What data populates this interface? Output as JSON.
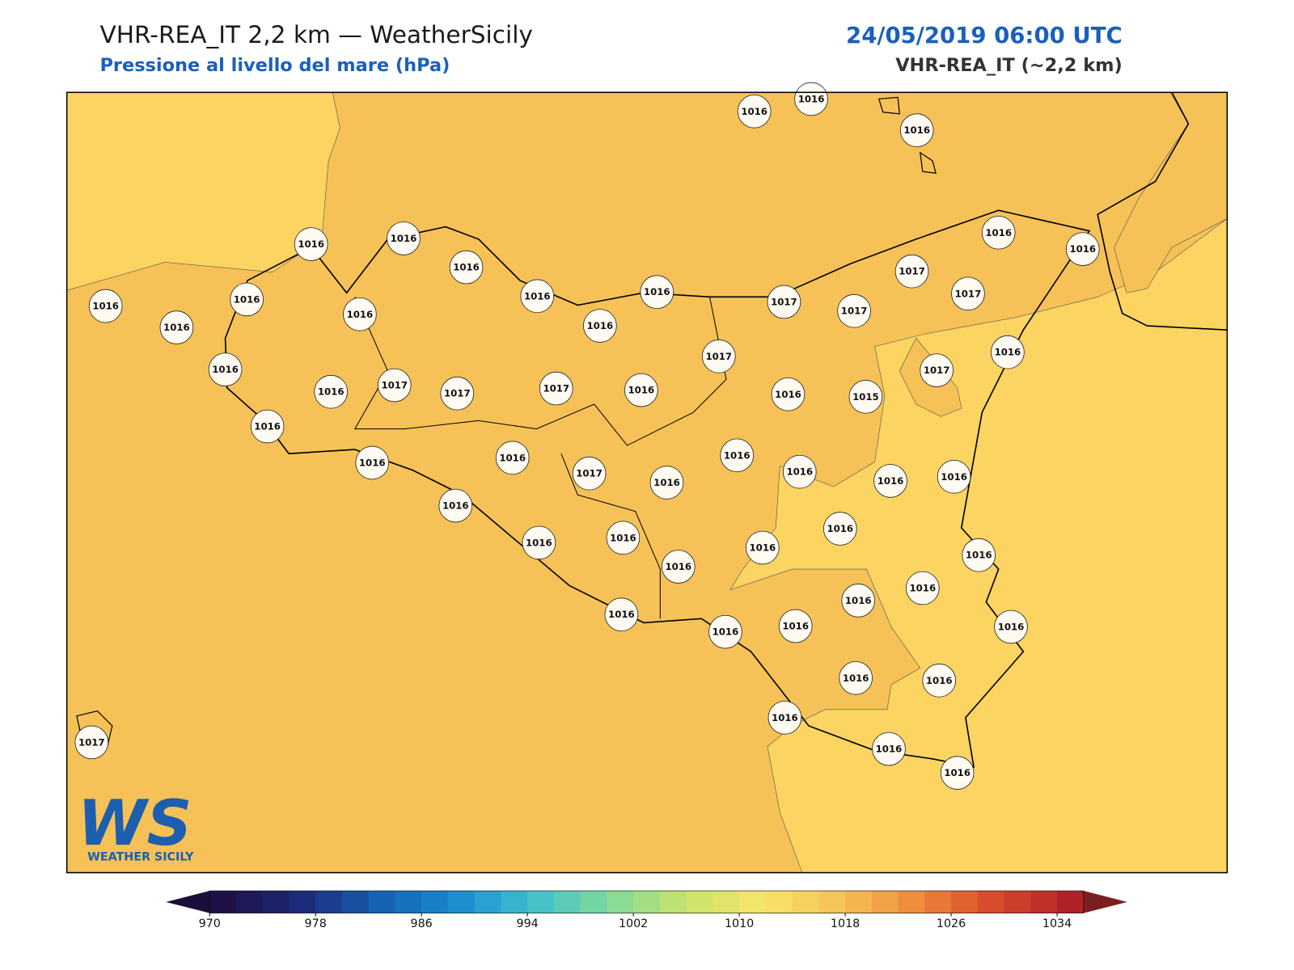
{
  "header": {
    "title": "VHR-REA_IT 2,2 km — WeatherSicily",
    "subtitle": "Pressione al livello del mare (hPa)",
    "date": "24/05/2019 06:00 UTC",
    "model": "VHR-REA_IT (~2,2 km)"
  },
  "stations": [
    1016,
    1016,
    1016,
    1016,
    1016,
    1016,
    1016,
    1016,
    1016,
    1016,
    1016,
    1016,
    1016,
    1016,
    1016,
    1017,
    1017,
    1017,
    1017,
    1016,
    1016,
    1017,
    1017,
    1016,
    1017,
    1017,
    1017,
    1016,
    1016,
    1015,
    1016,
    1016,
    1016,
    1016,
    1017,
    1016,
    1016,
    1016,
    1016,
    1016,
    1016,
    1016,
    1016,
    1016,
    1016,
    1016,
    1016,
    1016,
    1016,
    1016,
    1016,
    1016,
    1016,
    1016,
    1016,
    1016,
    1016,
    1017
  ],
  "colorbar": {
    "range": [
      970,
      1036
    ],
    "ticks": [
      970,
      978,
      986,
      994,
      1002,
      1010,
      1018,
      1026,
      1034
    ]
  },
  "logo": {
    "mark": "WS",
    "name": "WEATHER SICILY"
  }
}
